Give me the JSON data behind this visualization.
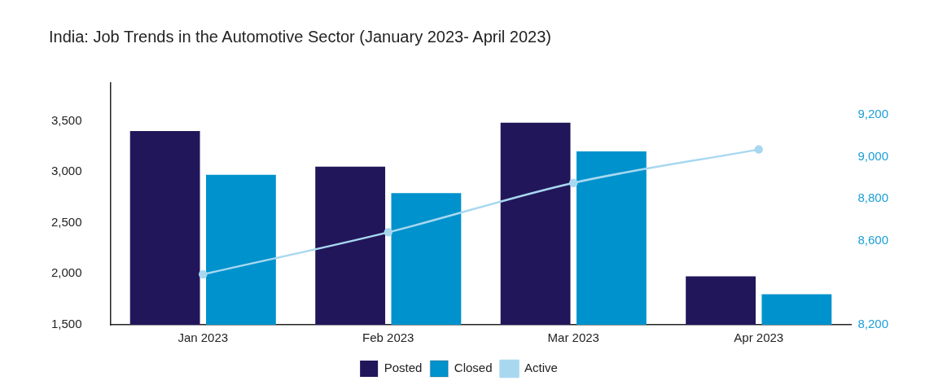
{
  "chart_data": {
    "type": "bar",
    "title": "India: Job Trends in the Automotive Sector (January 2023- April 2023)",
    "categories": [
      "Jan 2023",
      "Feb 2023",
      "Mar 2023",
      "Apr 2023"
    ],
    "series": [
      {
        "name": "Posted",
        "color": "#22165a",
        "values": [
          3400,
          3050,
          3480,
          1975
        ]
      },
      {
        "name": "Closed",
        "color": "#0092cc",
        "values": [
          2970,
          2790,
          3200,
          1800
        ]
      },
      {
        "name": "Active",
        "color": "#a8d8f0",
        "type": "line",
        "axis": "y2",
        "values": [
          8440,
          8640,
          8875,
          9034
        ]
      }
    ],
    "ylim": [
      1500,
      3870
    ],
    "yticks": [
      {
        "value": 1500,
        "label": "1,500"
      },
      {
        "value": 2000,
        "label": "2,000"
      },
      {
        "value": 2500,
        "label": "2,500"
      },
      {
        "value": 3000,
        "label": "3,000"
      },
      {
        "value": 3500,
        "label": "3,500"
      }
    ],
    "y2lim": [
      8200,
      9350
    ],
    "y2ticks": [
      {
        "value": 8200,
        "label": "8,200"
      },
      {
        "value": 8600,
        "label": "8,600"
      },
      {
        "value": 8800,
        "label": "8,800"
      },
      {
        "value": 9000,
        "label": "9,000"
      },
      {
        "value": 9200,
        "label": "9,200"
      }
    ],
    "grid": false,
    "legend": "bottom",
    "marker": "circle",
    "line_style": "solid"
  }
}
